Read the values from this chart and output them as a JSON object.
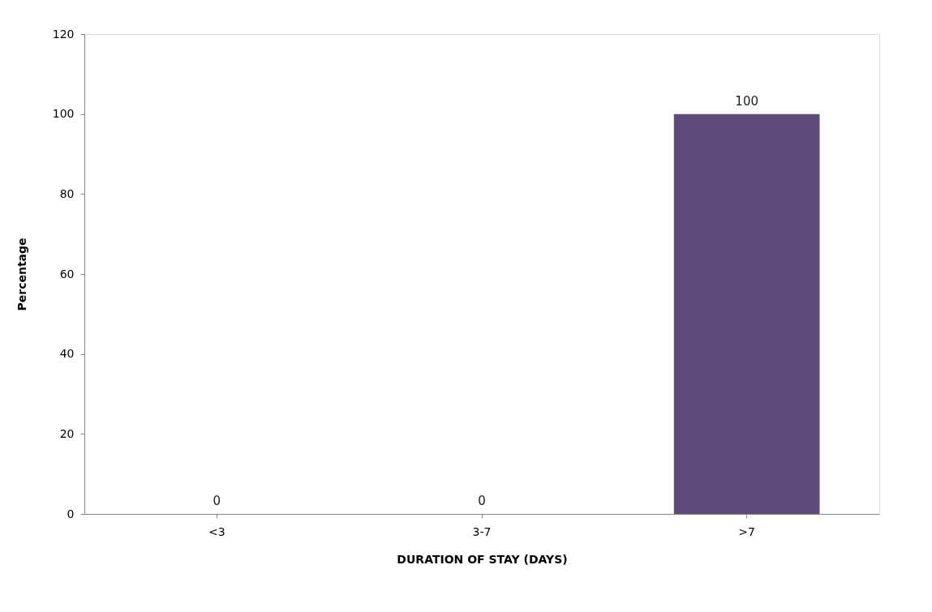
{
  "chart_data": {
    "type": "bar",
    "xlabel": "DURATION OF STAY (DAYS)",
    "ylabel": "Percentage",
    "categories": [
      "<3",
      "3-7",
      ">7"
    ],
    "values": [
      0,
      0,
      100
    ],
    "color": "#604a7b",
    "ylim": [
      0,
      120
    ],
    "yticks": [
      0,
      20,
      40,
      60,
      80,
      100,
      120
    ],
    "grid": false,
    "data_labels": true
  }
}
